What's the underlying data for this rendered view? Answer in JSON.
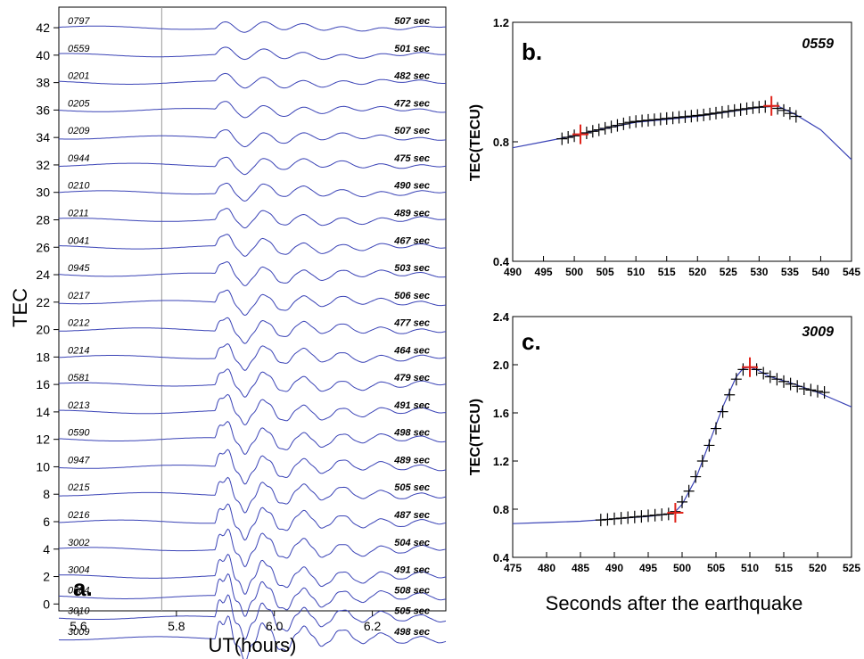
{
  "figure_xlabel": "Seconds after the earthquake",
  "chart_data": [
    {
      "id": "a",
      "type": "line",
      "panel_label": "a.",
      "xlabel": "UT(hours)",
      "ylabel": "TEC",
      "xlim": [
        5.56,
        6.35
      ],
      "ylim": [
        -0.5,
        43.5
      ],
      "xticks": [
        5.6,
        5.8,
        6.0,
        6.2
      ],
      "yticks": [
        0,
        2,
        4,
        6,
        8,
        10,
        12,
        14,
        16,
        18,
        20,
        22,
        24,
        26,
        28,
        30,
        32,
        34,
        36,
        38,
        40,
        42
      ],
      "vertical_line_x": 5.77,
      "grid": false,
      "series": [
        {
          "name": "0797",
          "delay": "507 sec",
          "offset": 42.0
        },
        {
          "name": "0559",
          "delay": "501 sec",
          "offset": 40.0
        },
        {
          "name": "0201",
          "delay": "482 sec",
          "offset": 38.0
        },
        {
          "name": "0205",
          "delay": "472 sec",
          "offset": 36.0
        },
        {
          "name": "0209",
          "delay": "507 sec",
          "offset": 34.0
        },
        {
          "name": "0944",
          "delay": "475 sec",
          "offset": 32.0
        },
        {
          "name": "0210",
          "delay": "490 sec",
          "offset": 30.0
        },
        {
          "name": "0211",
          "delay": "489 sec",
          "offset": 28.0
        },
        {
          "name": "0041",
          "delay": "467 sec",
          "offset": 26.0
        },
        {
          "name": "0945",
          "delay": "503 sec",
          "offset": 24.0
        },
        {
          "name": "0217",
          "delay": "506 sec",
          "offset": 22.0
        },
        {
          "name": "0212",
          "delay": "477 sec",
          "offset": 20.0
        },
        {
          "name": "0214",
          "delay": "464 sec",
          "offset": 18.0
        },
        {
          "name": "0581",
          "delay": "479 sec",
          "offset": 16.0
        },
        {
          "name": "0213",
          "delay": "491 sec",
          "offset": 14.0
        },
        {
          "name": "0590",
          "delay": "498 sec",
          "offset": 12.0
        },
        {
          "name": "0947",
          "delay": "489 sec",
          "offset": 10.0
        },
        {
          "name": "0215",
          "delay": "505 sec",
          "offset": 8.0
        },
        {
          "name": "0216",
          "delay": "487 sec",
          "offset": 6.0
        },
        {
          "name": "3002",
          "delay": "504 sec",
          "offset": 4.0
        },
        {
          "name": "3004",
          "delay": "491 sec",
          "offset": 2.0
        },
        {
          "name": "0584",
          "delay": "508 sec",
          "offset": 0.5
        },
        {
          "name": "3010",
          "delay": "505 sec",
          "offset": -1.0
        },
        {
          "name": "3009",
          "delay": "498 sec",
          "offset": -2.5
        }
      ]
    },
    {
      "id": "b",
      "type": "line",
      "panel_label": "b.",
      "title": "0559",
      "xlabel": "",
      "ylabel": "TEC(TECU)",
      "xlim": [
        490,
        545
      ],
      "ylim": [
        0.4,
        1.2
      ],
      "xticks": [
        490,
        495,
        500,
        505,
        510,
        515,
        520,
        525,
        530,
        535,
        540,
        545
      ],
      "yticks": [
        0.4,
        0.8,
        1.2
      ],
      "line": {
        "x": [
          490,
          495,
          500,
          505,
          510,
          515,
          520,
          525,
          530,
          533,
          536,
          540,
          545
        ],
        "y": [
          0.78,
          0.8,
          0.82,
          0.845,
          0.865,
          0.875,
          0.885,
          0.9,
          0.915,
          0.92,
          0.89,
          0.84,
          0.74
        ]
      },
      "markers": {
        "x": [
          498,
          499,
          500,
          501,
          502,
          503,
          504,
          505,
          506,
          507,
          508,
          509,
          510,
          511,
          512,
          513,
          514,
          515,
          516,
          517,
          518,
          519,
          520,
          521,
          522,
          523,
          524,
          525,
          526,
          527,
          528,
          529,
          530,
          531,
          532,
          533,
          534,
          535,
          536
        ],
        "y": [
          0.81,
          0.815,
          0.82,
          0.825,
          0.83,
          0.835,
          0.84,
          0.845,
          0.85,
          0.855,
          0.86,
          0.865,
          0.868,
          0.87,
          0.872,
          0.874,
          0.876,
          0.878,
          0.88,
          0.882,
          0.884,
          0.886,
          0.888,
          0.89,
          0.893,
          0.896,
          0.899,
          0.902,
          0.905,
          0.908,
          0.911,
          0.914,
          0.916,
          0.918,
          0.92,
          0.912,
          0.905,
          0.895,
          0.885
        ]
      },
      "picks": {
        "x": [
          501,
          532
        ],
        "y": [
          0.825,
          0.92
        ]
      }
    },
    {
      "id": "c",
      "type": "line",
      "panel_label": "c.",
      "title": "3009",
      "xlabel": "",
      "ylabel": "TEC(TECU)",
      "xlim": [
        475,
        525
      ],
      "ylim": [
        0.4,
        2.4
      ],
      "xticks": [
        475,
        480,
        485,
        490,
        495,
        500,
        505,
        510,
        515,
        520,
        525
      ],
      "yticks": [
        0.4,
        0.8,
        1.2,
        1.6,
        2.0,
        2.4
      ],
      "line": {
        "x": [
          475,
          480,
          485,
          490,
          495,
          498,
          499,
          500,
          502,
          504,
          506,
          508,
          509,
          510,
          511,
          513,
          516,
          520,
          525
        ],
        "y": [
          0.68,
          0.69,
          0.7,
          0.72,
          0.74,
          0.76,
          0.78,
          0.84,
          1.05,
          1.35,
          1.65,
          1.9,
          1.97,
          1.98,
          1.96,
          1.9,
          1.85,
          1.77,
          1.65
        ]
      },
      "markers": {
        "x": [
          488,
          489,
          490,
          491,
          492,
          493,
          494,
          495,
          496,
          497,
          498,
          499,
          500,
          501,
          502,
          503,
          504,
          505,
          506,
          507,
          508,
          509,
          510,
          511,
          512,
          513,
          514,
          515,
          516,
          517,
          518,
          519,
          520,
          521
        ],
        "y": [
          0.71,
          0.715,
          0.72,
          0.725,
          0.73,
          0.735,
          0.74,
          0.745,
          0.75,
          0.755,
          0.76,
          0.78,
          0.86,
          0.95,
          1.07,
          1.2,
          1.33,
          1.47,
          1.61,
          1.75,
          1.88,
          1.96,
          1.98,
          1.96,
          1.93,
          1.9,
          1.88,
          1.86,
          1.84,
          1.82,
          1.8,
          1.79,
          1.78,
          1.77
        ]
      },
      "picks": {
        "x": [
          499,
          510
        ],
        "y": [
          0.77,
          1.98
        ]
      }
    }
  ]
}
